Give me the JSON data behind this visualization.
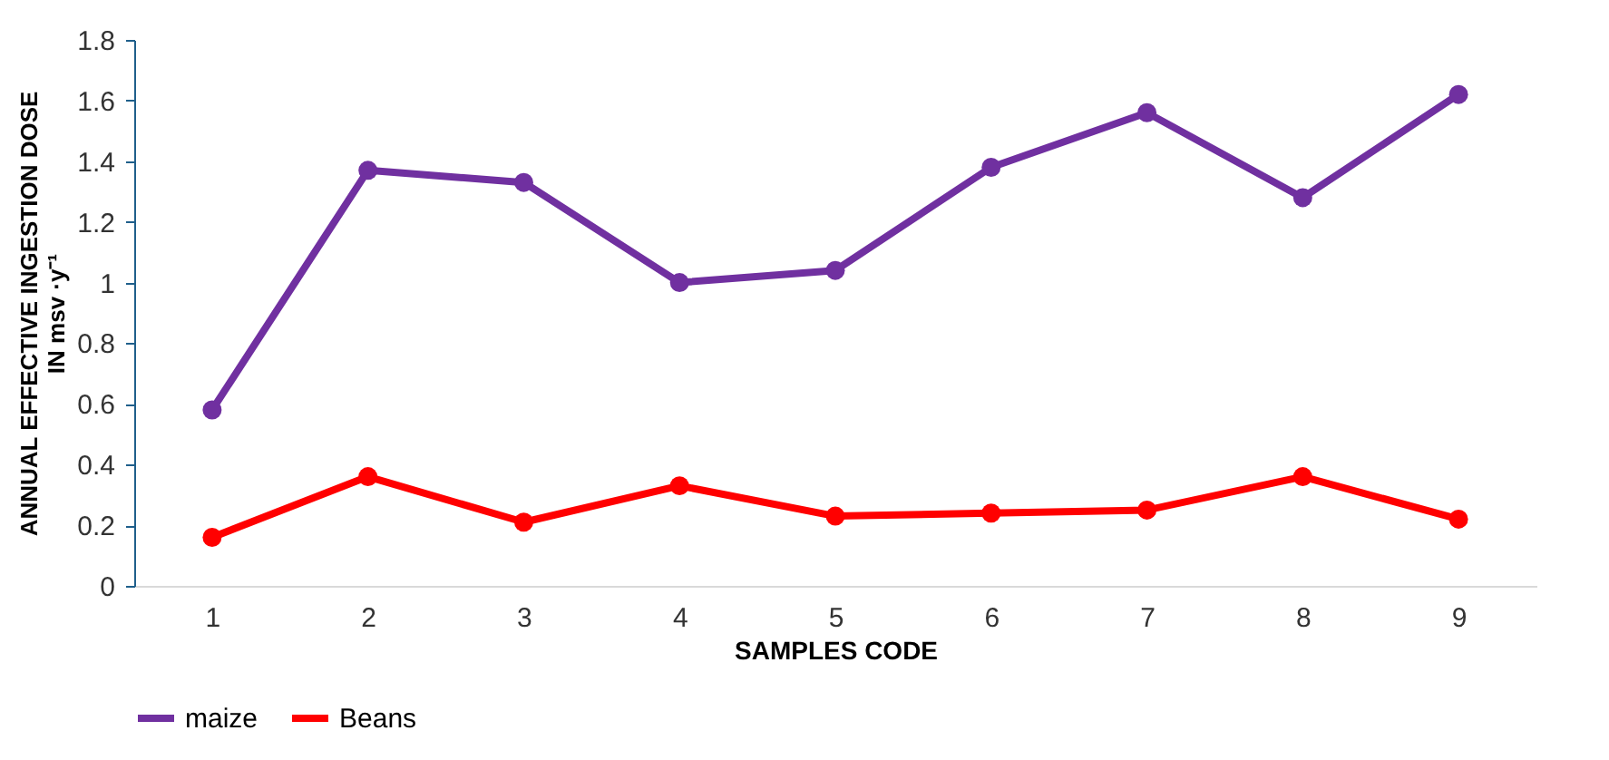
{
  "chart_data": {
    "type": "line",
    "xlabel": "SAMPLES CODE",
    "ylabel": "ANNUAL EFFECTIVE INGESTION DOSE IN msv ·y⁻¹",
    "categories": [
      "1",
      "2",
      "3",
      "4",
      "5",
      "6",
      "7",
      "8",
      "9"
    ],
    "series": [
      {
        "name": "maize",
        "color": "#7030a0",
        "values": [
          0.58,
          1.37,
          1.33,
          1.0,
          1.04,
          1.38,
          1.56,
          1.28,
          1.62
        ]
      },
      {
        "name": "Beans",
        "color": "#ff0000",
        "values": [
          0.16,
          0.36,
          0.21,
          0.33,
          0.23,
          0.24,
          0.25,
          0.36,
          0.22
        ]
      }
    ],
    "ylim": [
      0,
      1.8
    ],
    "yticks": [
      0,
      0.2,
      0.4,
      0.6,
      0.8,
      1,
      1.2,
      1.4,
      1.6,
      1.8
    ],
    "grid": false,
    "legend": "bottom",
    "marker": "circle",
    "line_style": "solid"
  }
}
